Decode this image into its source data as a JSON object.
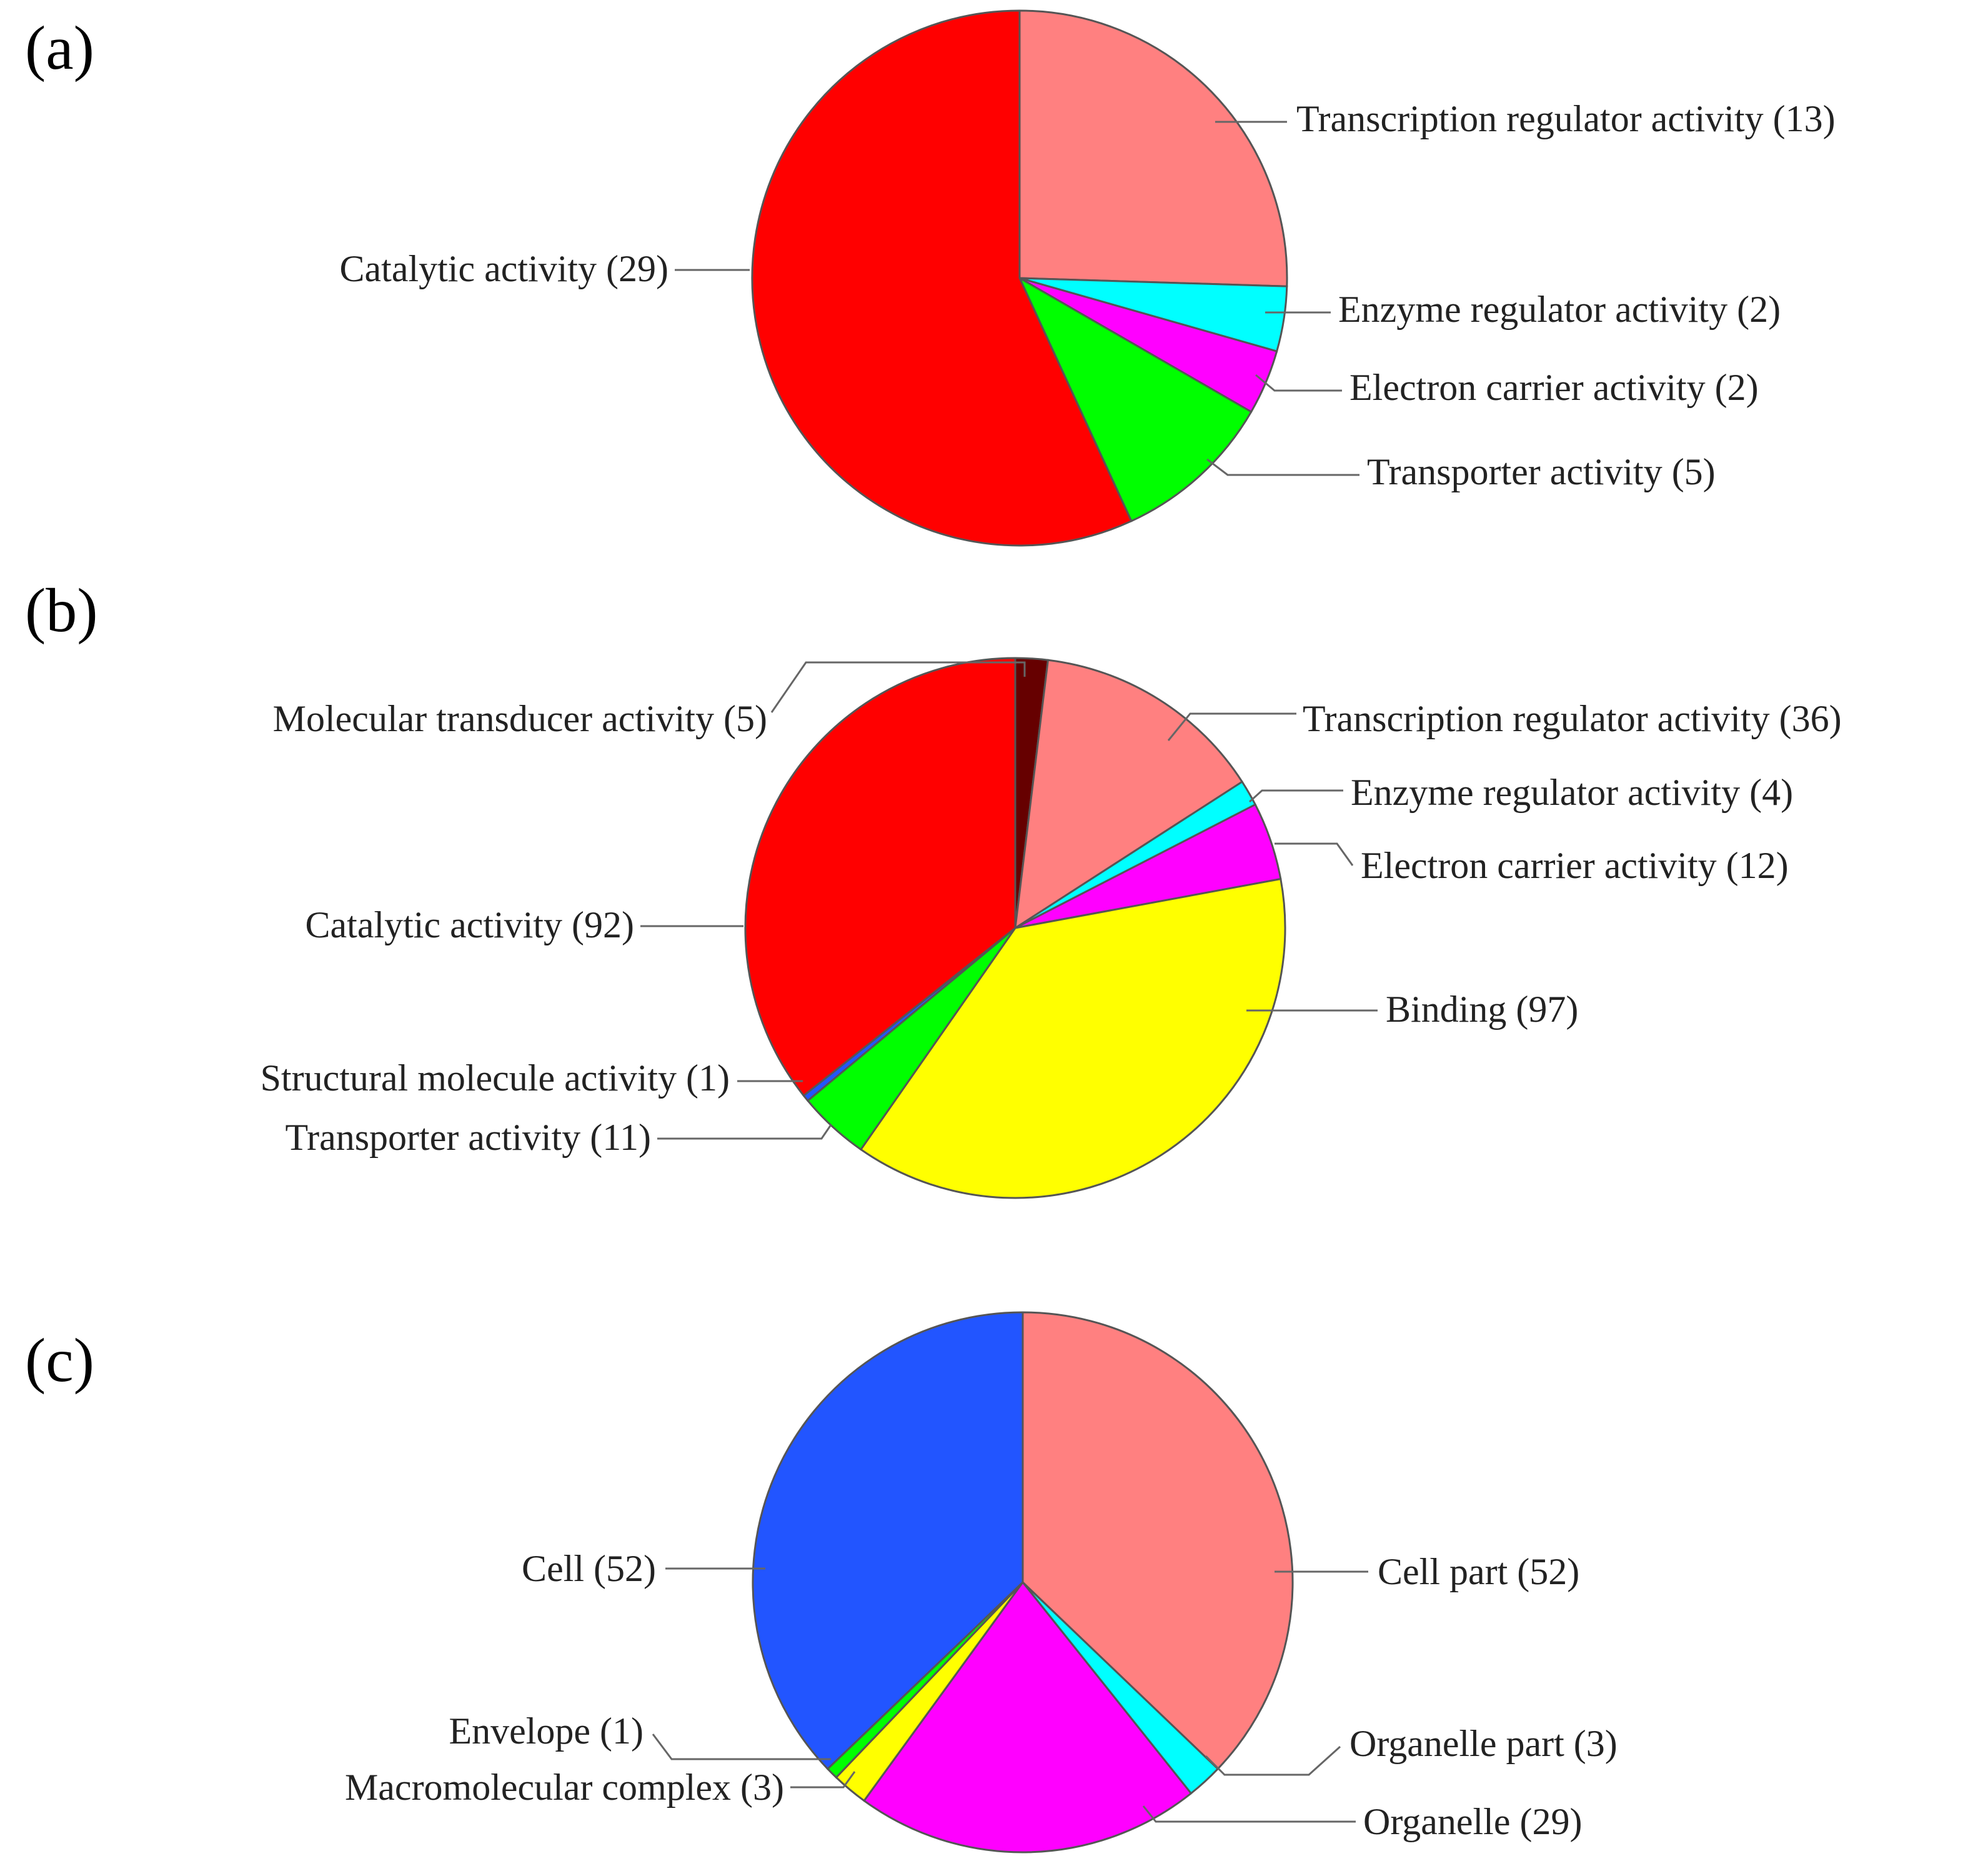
{
  "chart_data": [
    {
      "panel": "(a)",
      "type": "pie",
      "slices": [
        {
          "label": "Transcription regulator activity (13)",
          "value": 13,
          "color": "#ff8080"
        },
        {
          "label": "Enzyme regulator activity (2)",
          "value": 2,
          "color": "#00ffff"
        },
        {
          "label": "Electron carrier activity (2)",
          "value": 2,
          "color": "#ff00ff"
        },
        {
          "label": "Transporter activity (5)",
          "value": 5,
          "color": "#00ff00"
        },
        {
          "label": "Catalytic activity (29)",
          "value": 29,
          "color": "#ff0000"
        }
      ]
    },
    {
      "panel": "(b)",
      "type": "pie",
      "slices": [
        {
          "label": "Molecular transducer activity (5)",
          "value": 5,
          "color": "#660000"
        },
        {
          "label": "Transcription regulator activity (36)",
          "value": 36,
          "color": "#ff8080"
        },
        {
          "label": "Enzyme regulator activity (4)",
          "value": 4,
          "color": "#00ffff"
        },
        {
          "label": "Electron carrier activity (12)",
          "value": 12,
          "color": "#ff00ff"
        },
        {
          "label": "Binding (97)",
          "value": 97,
          "color": "#ffff00"
        },
        {
          "label": "Transporter activity (11)",
          "value": 11,
          "color": "#00ff00"
        },
        {
          "label": "Structural molecule activity (1)",
          "value": 1,
          "color": "#2255ff"
        },
        {
          "label": "Catalytic activity (92)",
          "value": 92,
          "color": "#ff0000"
        }
      ]
    },
    {
      "panel": "(c)",
      "type": "pie",
      "slices": [
        {
          "label": "Cell part (52)",
          "value": 52,
          "color": "#ff8080"
        },
        {
          "label": "Organelle part (3)",
          "value": 3,
          "color": "#00ffff"
        },
        {
          "label": "Organelle (29)",
          "value": 29,
          "color": "#ff00ff"
        },
        {
          "label": "Macromolecular complex (3)",
          "value": 3,
          "color": "#ffff00"
        },
        {
          "label": "Envelope (1)",
          "value": 1,
          "color": "#00ff00"
        },
        {
          "label": "Cell (52)",
          "value": 52,
          "color": "#2255ff"
        }
      ]
    }
  ]
}
